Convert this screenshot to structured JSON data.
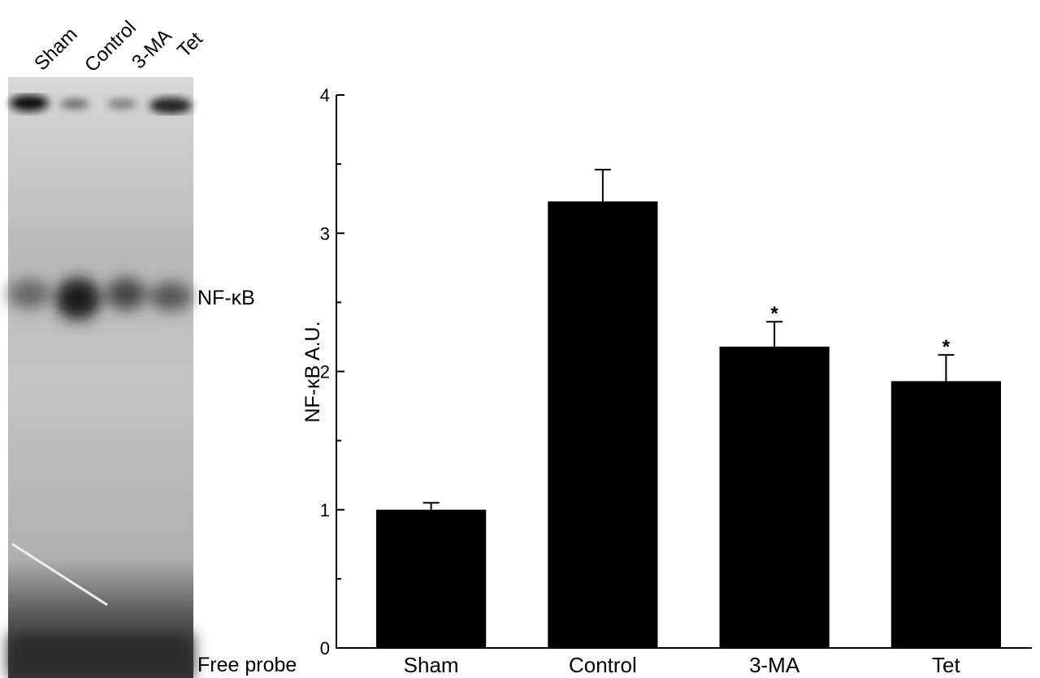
{
  "chart_data": {
    "type": "bar",
    "ylabel": "NF-κB A.U.",
    "categories": [
      "Sham",
      "Control",
      "3-MA",
      "Tet"
    ],
    "values": [
      1.0,
      3.23,
      2.18,
      1.93
    ],
    "errors": [
      0.05,
      0.23,
      0.18,
      0.19
    ],
    "significance": [
      null,
      null,
      "*",
      "*"
    ],
    "color": "#000000",
    "ylim": [
      0,
      4
    ],
    "yticks": [
      0,
      1,
      2,
      3,
      4
    ],
    "minor_yticks": [
      0.5,
      1.5,
      2.5,
      3.5
    ]
  },
  "gel": {
    "lanes": [
      "Sham",
      "Control",
      "3-MA",
      "Tet"
    ],
    "band_label": "NF-κB",
    "probe_label": "Free probe"
  }
}
